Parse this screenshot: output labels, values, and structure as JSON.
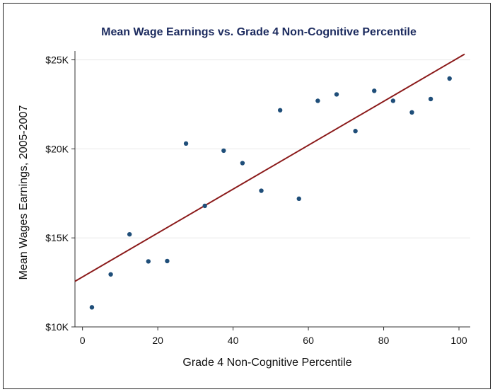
{
  "chart_data": {
    "type": "scatter",
    "title": "Mean Wage Earnings vs. Grade 4 Non-Cognitive Percentile",
    "xlabel": "Grade 4 Non-Cognitive Percentile",
    "ylabel": "Mean Wages Earnings, 2005-2007",
    "xlim": [
      -2,
      103
    ],
    "ylim": [
      10000,
      25500
    ],
    "x_ticks": [
      0,
      20,
      40,
      60,
      80,
      100
    ],
    "x_tick_labels": [
      "0",
      "20",
      "40",
      "60",
      "80",
      "100"
    ],
    "y_ticks": [
      10000,
      15000,
      20000,
      25000
    ],
    "y_tick_labels": [
      "$10K",
      "$15K",
      "$20K",
      "$25K"
    ],
    "grid": "horizontal",
    "points": [
      {
        "x": 2.5,
        "y": 11100
      },
      {
        "x": 7.5,
        "y": 12950
      },
      {
        "x": 12.5,
        "y": 15200
      },
      {
        "x": 17.5,
        "y": 13680
      },
      {
        "x": 22.5,
        "y": 13700
      },
      {
        "x": 27.5,
        "y": 20300
      },
      {
        "x": 32.5,
        "y": 16800
      },
      {
        "x": 37.5,
        "y": 19900
      },
      {
        "x": 42.5,
        "y": 19200
      },
      {
        "x": 47.5,
        "y": 17650
      },
      {
        "x": 52.5,
        "y": 22170
      },
      {
        "x": 57.5,
        "y": 17200
      },
      {
        "x": 62.5,
        "y": 22700
      },
      {
        "x": 67.5,
        "y": 23060
      },
      {
        "x": 72.5,
        "y": 21000
      },
      {
        "x": 77.5,
        "y": 23260
      },
      {
        "x": 82.5,
        "y": 22700
      },
      {
        "x": 87.5,
        "y": 22050
      },
      {
        "x": 92.5,
        "y": 22800
      },
      {
        "x": 97.5,
        "y": 23950
      }
    ],
    "fit_line": {
      "x": [
        -2,
        101.5
      ],
      "y": [
        12560,
        25320
      ]
    },
    "colors": {
      "points": "#1f4e79",
      "fit_line": "#8b1a1a",
      "title": "#1b2a5e",
      "grid": "#e8e8e8"
    }
  }
}
